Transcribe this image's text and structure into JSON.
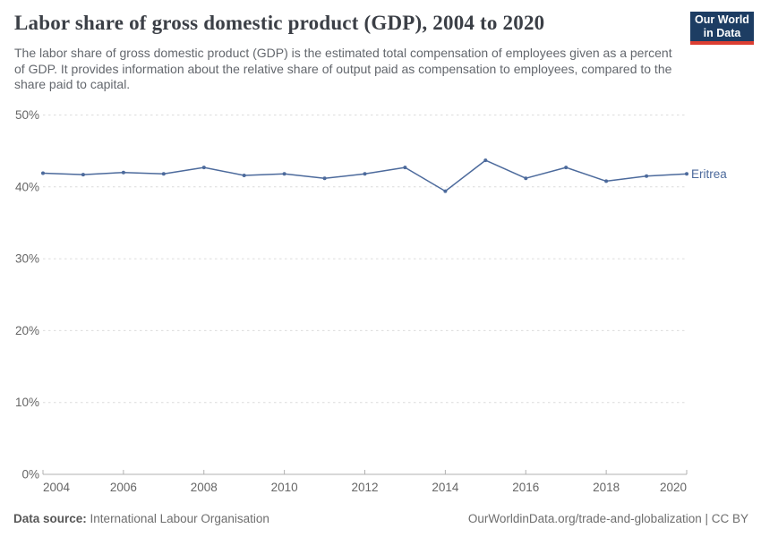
{
  "header": {
    "title": "Labor share of gross domestic product (GDP), 2004 to 2020",
    "subtitle": "The labor share of gross domestic product (GDP) is the estimated total compensation of employees given as a percent of GDP. It provides information about the relative share of output paid as compensation to employees, compared to the share paid to capital.",
    "logo": {
      "line1": "Our World",
      "line2": "in Data",
      "bg_color": "#1d3d63",
      "accent_color": "#dc3e32"
    }
  },
  "chart_data": {
    "type": "line",
    "title": "Labor share of gross domestic product (GDP), 2004 to 2020",
    "xlabel": "",
    "ylabel": "",
    "x": [
      2004,
      2005,
      2006,
      2007,
      2008,
      2009,
      2010,
      2011,
      2012,
      2013,
      2014,
      2015,
      2016,
      2017,
      2018,
      2019,
      2020
    ],
    "series": [
      {
        "name": "Eritrea",
        "color": "#4C6A9C",
        "values": [
          41.9,
          41.7,
          42.0,
          41.8,
          42.7,
          41.6,
          41.8,
          41.2,
          41.8,
          42.7,
          39.4,
          43.7,
          41.2,
          42.7,
          40.8,
          41.5,
          41.8
        ]
      }
    ],
    "ylim": [
      0,
      50
    ],
    "yticks": [
      0,
      10,
      20,
      30,
      40,
      50
    ],
    "ytick_suffix": "%",
    "xticks": [
      2004,
      2006,
      2008,
      2010,
      2012,
      2014,
      2016,
      2018,
      2020
    ],
    "grid": "horizontal-dashed",
    "legend_position": "end-of-line",
    "colors": {
      "grid_line": "#dcdcdc",
      "axis_line": "#b0b0b0",
      "tick_text": "#666666"
    }
  },
  "footer": {
    "datasource_label": "Data source:",
    "datasource_value": "International Labour Organisation",
    "credit": "OurWorldinData.org/trade-and-globalization | CC BY"
  }
}
